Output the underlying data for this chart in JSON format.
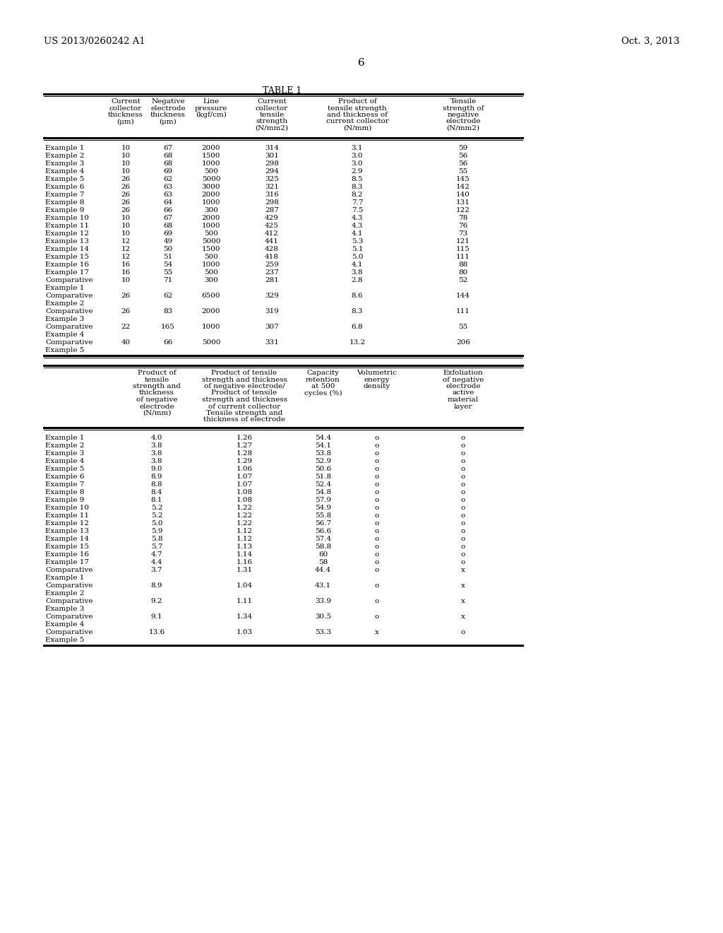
{
  "page_header_left": "US 2013/0260242 A1",
  "page_header_right": "Oct. 3, 2013",
  "page_number": "6",
  "table_title": "TABLE 1",
  "background_color": "#ffffff",
  "text_color": "#000000",
  "table1_col_headers": [
    "Current\ncollector\nthickness\n(μm)",
    "Negative\nelectrode\nthickness\n(μm)",
    "Line\npressure\n(kgf/cm)",
    "Current\ncollector\ntensile\nstrength\n(N/mm2)",
    "Product of\ntensile strength\nand thickness of\ncurrent collector\n(N/mm)",
    "Tensile\nstrength of\nnegative\nelectrode\n(N/mm2)"
  ],
  "table1_rows": [
    [
      "Example 1",
      "10",
      "67",
      "2000",
      "314",
      "3.1",
      "59"
    ],
    [
      "Example 2",
      "10",
      "68",
      "1500",
      "301",
      "3.0",
      "56"
    ],
    [
      "Example 3",
      "10",
      "68",
      "1000",
      "298",
      "3.0",
      "56"
    ],
    [
      "Example 4",
      "10",
      "69",
      "500",
      "294",
      "2.9",
      "55"
    ],
    [
      "Example 5",
      "26",
      "62",
      "5000",
      "325",
      "8.5",
      "145"
    ],
    [
      "Example 6",
      "26",
      "63",
      "3000",
      "321",
      "8.3",
      "142"
    ],
    [
      "Example 7",
      "26",
      "63",
      "2000",
      "316",
      "8.2",
      "140"
    ],
    [
      "Example 8",
      "26",
      "64",
      "1000",
      "298",
      "7.7",
      "131"
    ],
    [
      "Example 9",
      "26",
      "66",
      "300",
      "287",
      "7.5",
      "122"
    ],
    [
      "Example 10",
      "10",
      "67",
      "2000",
      "429",
      "4.3",
      "78"
    ],
    [
      "Example 11",
      "10",
      "68",
      "1000",
      "425",
      "4.3",
      "76"
    ],
    [
      "Example 12",
      "10",
      "69",
      "500",
      "412",
      "4.1",
      "73"
    ],
    [
      "Example 13",
      "12",
      "49",
      "5000",
      "441",
      "5.3",
      "121"
    ],
    [
      "Example 14",
      "12",
      "50",
      "1500",
      "428",
      "5.1",
      "115"
    ],
    [
      "Example 15",
      "12",
      "51",
      "500",
      "418",
      "5.0",
      "111"
    ],
    [
      "Example 16",
      "16",
      "54",
      "1000",
      "259",
      "4.1",
      "88"
    ],
    [
      "Example 17",
      "16",
      "55",
      "500",
      "237",
      "3.8",
      "80"
    ],
    [
      "Comparative\nExample 1",
      "10",
      "71",
      "300",
      "281",
      "2.8",
      "52"
    ],
    [
      "Comparative\nExample 2",
      "26",
      "62",
      "6500",
      "329",
      "8.6",
      "144"
    ],
    [
      "Comparative\nExample 3",
      "26",
      "83",
      "2000",
      "319",
      "8.3",
      "111"
    ],
    [
      "Comparative\nExample 4",
      "22",
      "165",
      "1000",
      "307",
      "6.8",
      "55"
    ],
    [
      "Comparative\nExample 5",
      "40",
      "66",
      "5000",
      "331",
      "13.2",
      "206"
    ]
  ],
  "table2_col_headers": [
    "Product of\ntensile\nstrength and\nthickness\nof negative\nelectrode\n(N/mm)",
    "Product of tensile\nstrength and thickness\nof negative electrode/\nProduct of tensile\nstrength and thickness\nof current collector\nTensile strength and\nthickness of electrode",
    "Capacity\nretention\nat 500\ncycles (%)",
    "Volumetric\nenergy\ndensity",
    "Exfoliation\nof negative\nelectrode\nactive\nmaterial\nlayer"
  ],
  "table2_rows": [
    [
      "Example 1",
      "4.0",
      "1.26",
      "54.4",
      "o",
      "o"
    ],
    [
      "Example 2",
      "3.8",
      "1.27",
      "54.1",
      "o",
      "o"
    ],
    [
      "Example 3",
      "3.8",
      "1.28",
      "53.8",
      "o",
      "o"
    ],
    [
      "Example 4",
      "3.8",
      "1.29",
      "52.9",
      "o",
      "o"
    ],
    [
      "Example 5",
      "9.0",
      "1.06",
      "50.6",
      "o",
      "o"
    ],
    [
      "Example 6",
      "8.9",
      "1.07",
      "51.8",
      "o",
      "o"
    ],
    [
      "Example 7",
      "8.8",
      "1.07",
      "52.4",
      "o",
      "o"
    ],
    [
      "Example 8",
      "8.4",
      "1.08",
      "54.8",
      "o",
      "o"
    ],
    [
      "Example 9",
      "8.1",
      "1.08",
      "57.9",
      "o",
      "o"
    ],
    [
      "Example 10",
      "5.2",
      "1.22",
      "54.9",
      "o",
      "o"
    ],
    [
      "Example 11",
      "5.2",
      "1.22",
      "55.8",
      "o",
      "o"
    ],
    [
      "Example 12",
      "5.0",
      "1.22",
      "56.7",
      "o",
      "o"
    ],
    [
      "Example 13",
      "5.9",
      "1.12",
      "56.6",
      "o",
      "o"
    ],
    [
      "Example 14",
      "5.8",
      "1.12",
      "57.4",
      "o",
      "o"
    ],
    [
      "Example 15",
      "5.7",
      "1.13",
      "58.8",
      "o",
      "o"
    ],
    [
      "Example 16",
      "4.7",
      "1.14",
      "60",
      "o",
      "o"
    ],
    [
      "Example 17",
      "4.4",
      "1.16",
      "58",
      "o",
      "o"
    ],
    [
      "Comparative\nExample 1",
      "3.7",
      "1.31",
      "44.4",
      "o",
      "x"
    ],
    [
      "Comparative\nExample 2",
      "8.9",
      "1.04",
      "43.1",
      "o",
      "x"
    ],
    [
      "Comparative\nExample 3",
      "9.2",
      "1.11",
      "33.9",
      "o",
      "x"
    ],
    [
      "Comparative\nExample 4",
      "9.1",
      "1.34",
      "30.5",
      "o",
      "x"
    ],
    [
      "Comparative\nExample 5",
      "13.6",
      "1.03",
      "53.3",
      "x",
      "o"
    ]
  ]
}
